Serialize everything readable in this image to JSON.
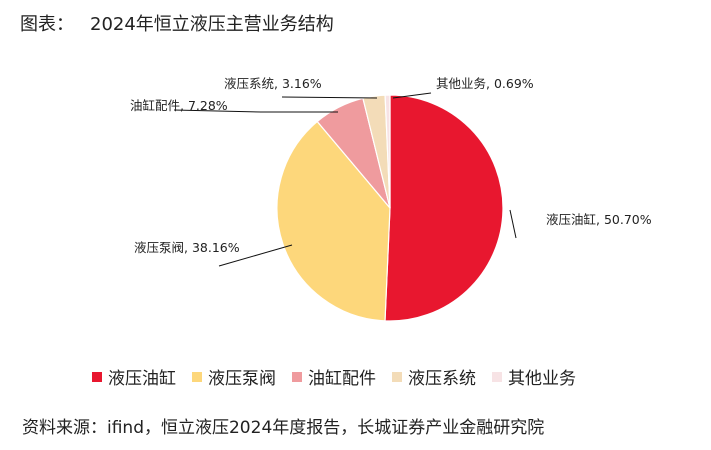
{
  "title": {
    "prefix": "图表：",
    "text": "2024年恒立液压主营业务结构"
  },
  "chart_data": {
    "type": "pie",
    "title": "2024年恒立液压主营业务结构",
    "categories": [
      "液压油缸",
      "液压泵阀",
      "油缸配件",
      "液压系统",
      "其他业务"
    ],
    "values": [
      50.7,
      38.16,
      7.28,
      3.16,
      0.69
    ],
    "unit": "%",
    "data_labels": [
      "液压油缸, 50.70%",
      "液压泵阀, 38.16%",
      "油缸配件, 7.28%",
      "液压系统, 3.16%",
      "其他业务, 0.69%"
    ],
    "colors": [
      "#e8172f",
      "#fdd77b",
      "#ef9b9e",
      "#f3dcb8",
      "#f7e3e5"
    ],
    "legend_placement": "bottom",
    "start_angle": "12 o'clock",
    "direction": "clockwise"
  },
  "source": "资料来源：ifind，恒立液压2024年度报告，长城证券产业金融研究院"
}
